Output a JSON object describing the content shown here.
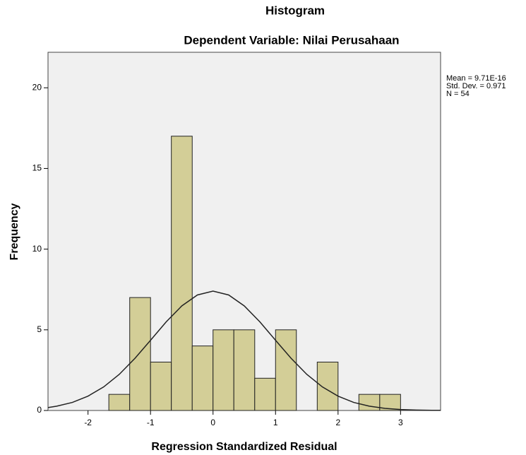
{
  "chart_data": {
    "type": "histogram",
    "title": "Histogram",
    "subtitle": "Dependent Variable: Nilai Perusahaan",
    "xlabel": "Regression Standardized Residual",
    "ylabel": "Frequency",
    "stats": [
      "Mean = 9.71E-16",
      "Std. Dev. = 0.971",
      "N = 54"
    ],
    "bins": [
      -1.667,
      -1.333,
      -1,
      -0.667,
      -0.333,
      0,
      0.333,
      0.667,
      1,
      1.333,
      1.667,
      2,
      2.333,
      2.667,
      3
    ],
    "values": [
      1,
      7,
      3,
      17,
      4,
      5,
      5,
      2,
      5,
      0,
      3,
      0,
      1,
      1
    ],
    "color": "#d3ce97",
    "curve": {
      "x": [
        -2.64,
        -2.5,
        -2.25,
        -2,
        -1.75,
        -1.5,
        -1.25,
        -1,
        -0.75,
        -0.5,
        -0.25,
        0,
        0.25,
        0.5,
        0.75,
        1,
        1.25,
        1.5,
        1.75,
        2,
        2.25,
        2.5,
        2.75,
        3,
        3.25,
        3.5,
        3.64
      ],
      "values": [
        0.18,
        0.27,
        0.5,
        0.89,
        1.46,
        2.24,
        3.23,
        4.35,
        5.49,
        6.48,
        7.16,
        7.4,
        7.16,
        6.48,
        5.49,
        4.35,
        3.23,
        2.24,
        1.46,
        0.89,
        0.5,
        0.27,
        0.13,
        0.06,
        0.03,
        0.01,
        0.01
      ]
    },
    "xlim": [
      -2.64,
      3.64
    ],
    "xticks": [
      -2,
      -1,
      0,
      1,
      2,
      3
    ],
    "ylim": [
      0,
      22.2
    ],
    "yticks": [
      0,
      5,
      10,
      15,
      20
    ]
  }
}
